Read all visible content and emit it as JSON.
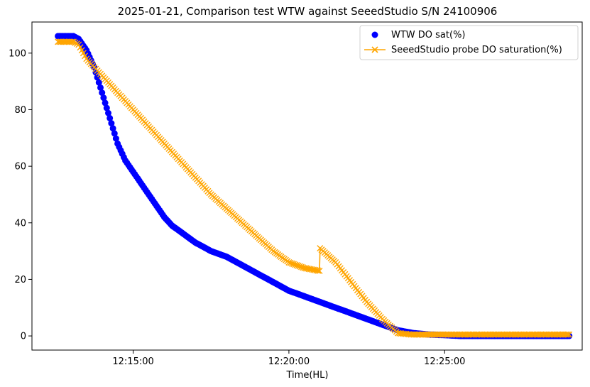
{
  "chart_data": {
    "type": "scatter",
    "title": "2025-01-21, Comparison test WTW against SeeedStudio S/N 24100906",
    "xlabel": "Time(HL)",
    "ylabel": "",
    "x_unit": "time_of_day",
    "xlim": [
      "12:11:45",
      "12:29:25"
    ],
    "ylim": [
      -5,
      111
    ],
    "x_ticks": [
      "12:15:00",
      "12:20:00",
      "12:25:00"
    ],
    "y_ticks": [
      0,
      20,
      40,
      60,
      80,
      100
    ],
    "grid": false,
    "legend_position": "top-right",
    "series": [
      {
        "name": "WTW DO sat(%)",
        "kind": "scatter",
        "marker": "circle",
        "color": "#0000ff",
        "x": [
          "12:12:35",
          "12:12:50",
          "12:13:05",
          "12:13:15",
          "12:13:30",
          "12:13:45",
          "12:14:00",
          "12:14:15",
          "12:14:30",
          "12:14:45",
          "12:15:00",
          "12:15:15",
          "12:15:30",
          "12:15:45",
          "12:16:00",
          "12:16:15",
          "12:16:30",
          "12:16:45",
          "12:17:00",
          "12:17:30",
          "12:18:00",
          "12:18:30",
          "12:19:00",
          "12:19:30",
          "12:20:00",
          "12:20:30",
          "12:21:00",
          "12:21:30",
          "12:22:00",
          "12:22:30",
          "12:23:00",
          "12:23:30",
          "12:24:00",
          "12:24:30",
          "12:25:00",
          "12:25:30",
          "12:26:00",
          "12:27:00",
          "12:28:00",
          "12:29:00"
        ],
        "values": [
          106,
          106,
          106,
          105,
          101,
          95,
          86,
          77,
          68,
          62,
          58,
          54,
          50,
          46,
          42,
          39,
          37,
          35,
          33,
          30,
          28,
          25,
          22,
          19,
          16,
          14,
          12,
          10,
          8,
          6,
          4,
          2,
          1,
          0.5,
          0.3,
          0,
          0,
          0,
          0,
          0
        ]
      },
      {
        "name": "SeeedStudio probe DO saturation(%)",
        "kind": "line",
        "marker": "x",
        "color": "#ffa500",
        "x": [
          "12:12:35",
          "12:12:50",
          "12:13:05",
          "12:13:15",
          "12:13:30",
          "12:13:45",
          "12:14:00",
          "12:14:30",
          "12:15:00",
          "12:15:30",
          "12:16:00",
          "12:16:30",
          "12:17:00",
          "12:17:30",
          "12:18:00",
          "12:18:30",
          "12:19:00",
          "12:19:30",
          "12:20:00",
          "12:20:30",
          "12:20:59",
          "12:21:00",
          "12:21:30",
          "12:22:00",
          "12:22:30",
          "12:23:00",
          "12:23:30",
          "12:23:55",
          "12:24:30",
          "12:25:00",
          "12:26:00",
          "12:27:00",
          "12:28:00",
          "12:29:00"
        ],
        "values": [
          104,
          104,
          104,
          103,
          98,
          95,
          92,
          86,
          80,
          74,
          68,
          62,
          56,
          50,
          45,
          40,
          35,
          30,
          26,
          24,
          23,
          31,
          26,
          19,
          12,
          6,
          1,
          0.5,
          0.5,
          0.5,
          0.5,
          0.5,
          0.5,
          0.5
        ]
      }
    ]
  }
}
